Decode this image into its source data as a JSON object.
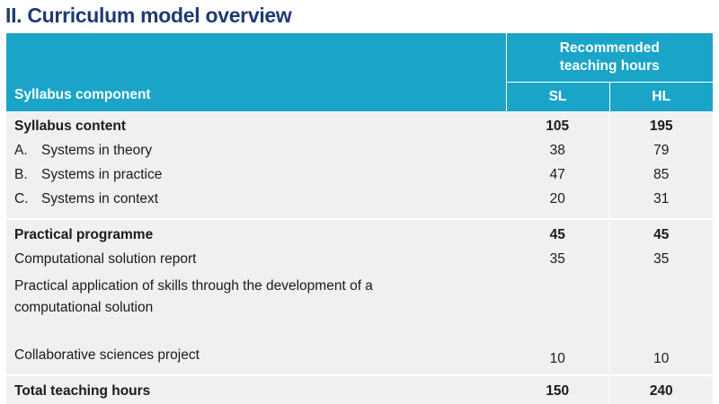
{
  "title": "II. Curriculum model overview",
  "header": {
    "component": "Syllabus component",
    "recommended": "Recommended teaching hours",
    "sl": "SL",
    "hl": "HL"
  },
  "syllabus_content": {
    "label": "Syllabus content",
    "sl": "105",
    "hl": "195",
    "items": [
      {
        "letter": "A.",
        "label": "Systems in theory",
        "sl": "38",
        "hl": "79"
      },
      {
        "letter": "B.",
        "label": "Systems in practice",
        "sl": "47",
        "hl": "85"
      },
      {
        "letter": "C.",
        "label": "Systems in context",
        "sl": "20",
        "hl": "31"
      }
    ]
  },
  "practical_programme": {
    "label": "Practical programme",
    "sl": "45",
    "hl": "45",
    "items": [
      {
        "label": "Computational solution report",
        "sl": "35",
        "hl": "35"
      },
      {
        "label": "Practical application of skills through the development of a computational solution",
        "sl": "",
        "hl": ""
      },
      {
        "label": "Collaborative sciences project",
        "sl": "10",
        "hl": "10"
      }
    ]
  },
  "total": {
    "label": "Total teaching hours",
    "sl": "150",
    "hl": "240"
  }
}
